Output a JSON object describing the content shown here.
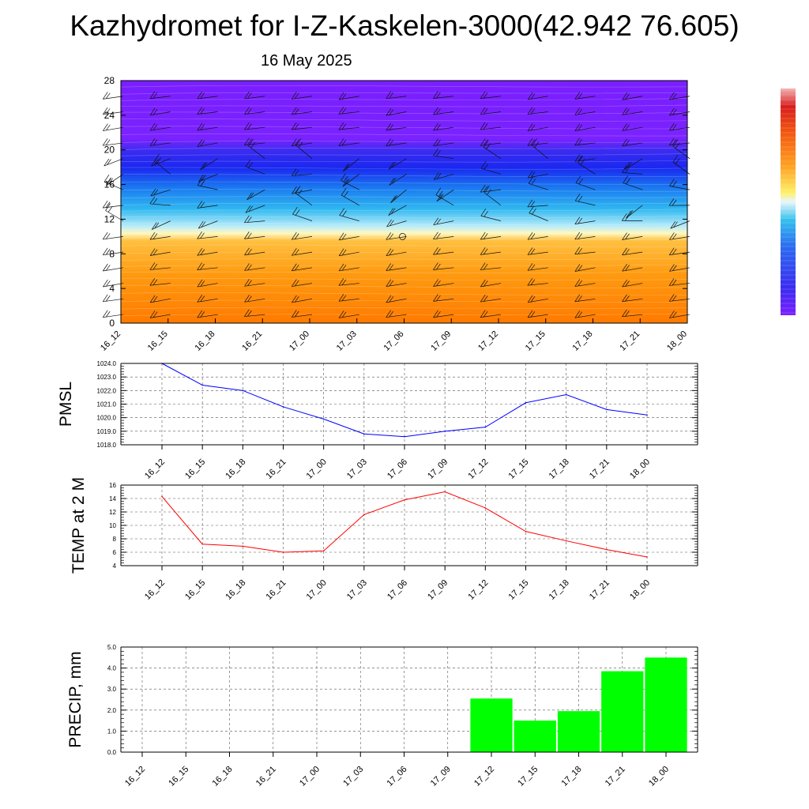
{
  "title": "Kazhydromet for I-Z-Kaskelen-3000(42.942 76.605)",
  "subtitle": "16 May 2025",
  "time_labels": [
    "16_12",
    "16_15",
    "16_18",
    "16_21",
    "17_00",
    "17_03",
    "17_06",
    "17_09",
    "17_12",
    "17_15",
    "17_18",
    "17_21",
    "18_00"
  ],
  "colors": {
    "pmsl_line": "#0000ff",
    "temp_line": "#ff0000",
    "precip_bar": "#00ff00",
    "colorbar": [
      "#7a1fff",
      "#5a2cf5",
      "#2f3be8",
      "#1e66f0",
      "#22a8ee",
      "#7fd8f4",
      "#e8f6fb",
      "#fff06a",
      "#ffb347",
      "#ff8c1a",
      "#f45a10",
      "#d81e1e",
      "#f0a0a0"
    ]
  },
  "chart_data": [
    {
      "type": "heatmap",
      "ylim": [
        0,
        28
      ],
      "yticks": [
        0,
        4,
        8,
        12,
        16,
        20,
        24,
        28
      ],
      "x": [
        "16_12",
        "16_15",
        "16_18",
        "16_21",
        "17_00",
        "17_03",
        "17_06",
        "17_09",
        "17_12",
        "17_15",
        "17_18",
        "17_21",
        "18_00"
      ],
      "color_bands": [
        {
          "from": 0,
          "to": 10.5,
          "color": "orange"
        },
        {
          "from": 10.5,
          "to": 11.3,
          "color": "pale-yellow"
        },
        {
          "from": 11.3,
          "to": 16,
          "color": "light-blue"
        },
        {
          "from": 16,
          "to": 21,
          "color": "blue"
        },
        {
          "from": 21,
          "to": 28,
          "color": "purple"
        }
      ],
      "overlay": "wind-barbs",
      "colorbar": "right"
    },
    {
      "type": "line",
      "ylabel": "PMSL",
      "ylim": [
        1018.0,
        1024.0
      ],
      "yticks": [
        "1018.0",
        "1019.0",
        "1020.0",
        "1021.0",
        "1022.0",
        "1023.0",
        "1024.0"
      ],
      "grid": true,
      "x": [
        "16_12",
        "16_15",
        "16_18",
        "16_21",
        "17_00",
        "17_03",
        "17_06",
        "17_09",
        "17_12",
        "17_15",
        "17_18",
        "17_21",
        "18_00"
      ],
      "values": [
        1024.0,
        1022.4,
        1022.0,
        1020.8,
        1019.9,
        1018.8,
        1018.6,
        1019.0,
        1019.3,
        1021.1,
        1021.7,
        1020.6,
        1020.2
      ]
    },
    {
      "type": "line",
      "ylabel": "TEMP at 2 M",
      "ylim": [
        4,
        16
      ],
      "yticks": [
        "4",
        "6",
        "8",
        "10",
        "12",
        "14",
        "16"
      ],
      "grid": true,
      "x": [
        "16_12",
        "16_15",
        "16_18",
        "16_21",
        "17_00",
        "17_03",
        "17_06",
        "17_09",
        "17_12",
        "17_15",
        "17_18",
        "17_21",
        "18_00"
      ],
      "values": [
        14.3,
        7.2,
        6.9,
        6.0,
        6.2,
        11.6,
        13.8,
        15.0,
        12.6,
        9.1,
        7.7,
        6.4,
        5.3
      ]
    },
    {
      "type": "bar",
      "ylabel": "PRECIP, mm",
      "ylim": [
        0.0,
        5.0
      ],
      "yticks": [
        "0.0",
        "1.0",
        "2.0",
        "3.0",
        "4.0",
        "5.0"
      ],
      "grid": true,
      "categories": [
        "16_12",
        "16_15",
        "16_18",
        "16_21",
        "17_00",
        "17_03",
        "17_06",
        "17_09",
        "17_12",
        "17_15",
        "17_18",
        "17_21",
        "18_00"
      ],
      "values": [
        0,
        0,
        0,
        0,
        0,
        0,
        0,
        0,
        2.55,
        1.5,
        1.95,
        3.85,
        4.5
      ]
    }
  ]
}
